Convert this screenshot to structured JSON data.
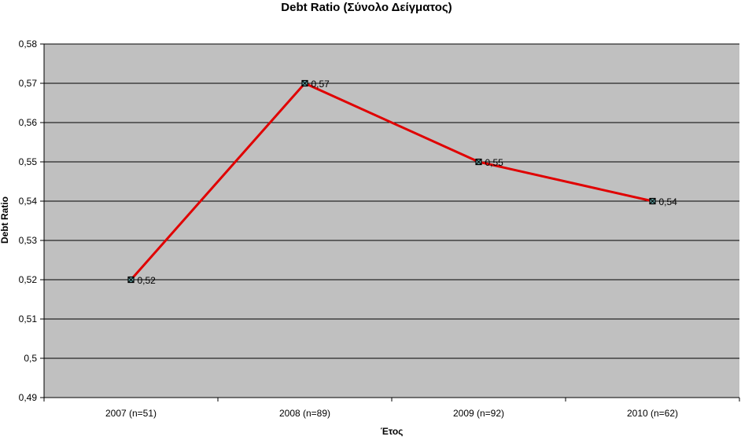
{
  "chart_data": {
    "type": "line",
    "title": "Debt Ratio (Σύνολο Δείγματος)",
    "xlabel": "Έτος",
    "ylabel": "Debt Ratio",
    "categories": [
      "2007 (n=51)",
      "2008 (n=89)",
      "2009 (n=92)",
      "2010 (n=62)"
    ],
    "series": [
      {
        "values": [
          0.52,
          0.57,
          0.55,
          0.54
        ],
        "data_labels": [
          "0,52",
          "0,57",
          "0,55",
          "0,54"
        ]
      }
    ],
    "ylim": [
      0.49,
      0.58
    ],
    "yticks": [
      0.49,
      0.5,
      0.51,
      0.52,
      0.53,
      0.54,
      0.55,
      0.56,
      0.57,
      0.58
    ],
    "ytick_labels": [
      "0,49",
      "0,5",
      "0,51",
      "0,52",
      "0,53",
      "0,54",
      "0,55",
      "0,56",
      "0,57",
      "0,58"
    ],
    "grid": true,
    "legend": "none",
    "colors": {
      "plot_background": "#c0c0c0",
      "line": "#e00000",
      "gridline": "#000000",
      "marker_fill": "#5fa0a0"
    }
  }
}
